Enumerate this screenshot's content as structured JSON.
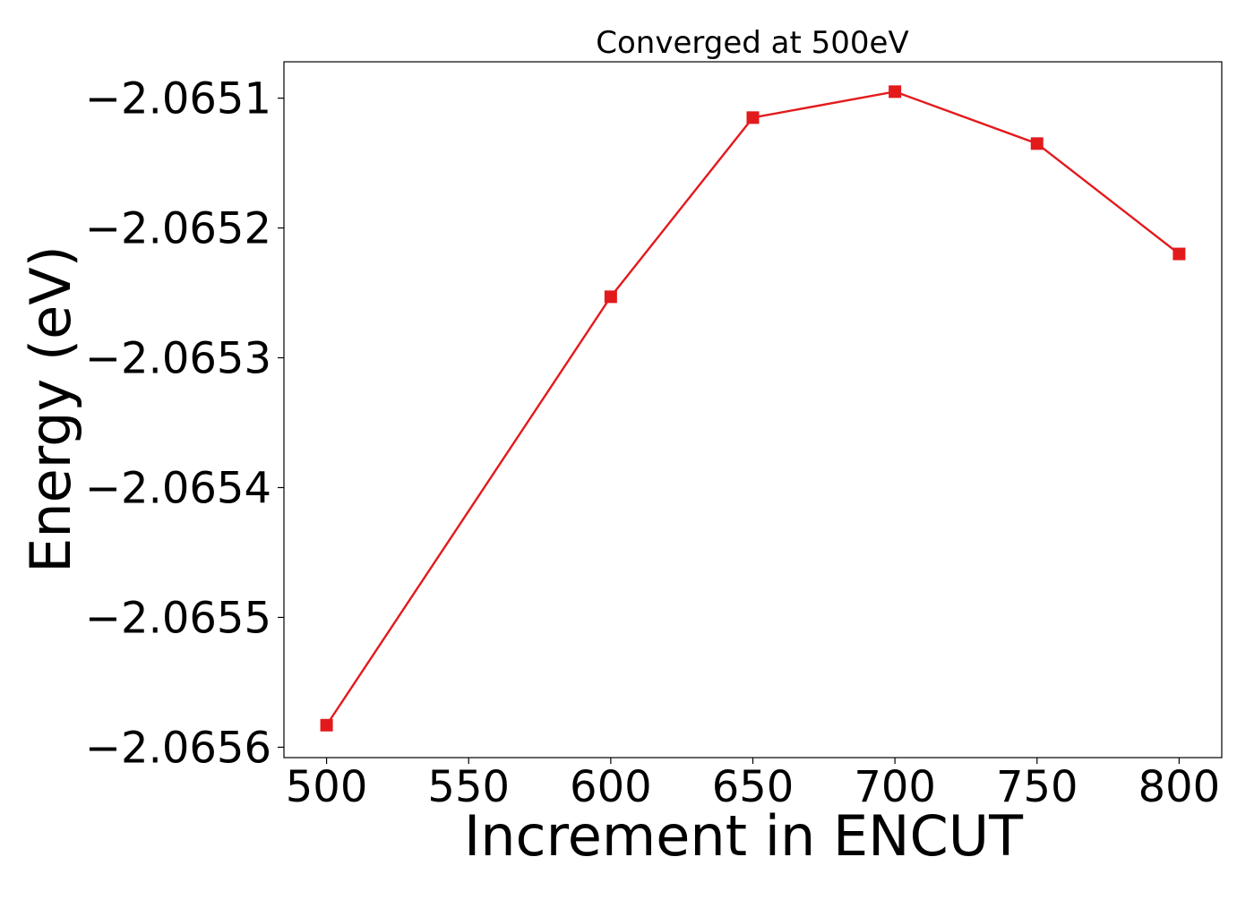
{
  "chart_data": {
    "type": "line",
    "title": "Converged at 500eV",
    "xlabel": "Increment in ENCUT",
    "ylabel": "Energy (eV)",
    "x": [
      500,
      600,
      650,
      700,
      750,
      800
    ],
    "series": [
      {
        "values": [
          -2.065583,
          -2.065253,
          -2.065115,
          -2.065095,
          -2.065135,
          -2.06522
        ],
        "color": "#e31a1c",
        "marker": "square"
      }
    ],
    "xticks": [
      500,
      550,
      600,
      650,
      700,
      750,
      800
    ],
    "xtick_labels": [
      "500",
      "550",
      "600",
      "650",
      "700",
      "750",
      "800"
    ],
    "yticks": [
      -2.0656,
      -2.0655,
      -2.0654,
      -2.0653,
      -2.0652,
      -2.0651
    ],
    "ytick_labels": [
      "−2.0656",
      "−2.0655",
      "−2.0654",
      "−2.0653",
      "−2.0652",
      "−2.0651"
    ],
    "xlim": [
      485,
      815
    ],
    "ylim": [
      -2.065608,
      -2.065072
    ],
    "grid": false,
    "legend": "none"
  }
}
